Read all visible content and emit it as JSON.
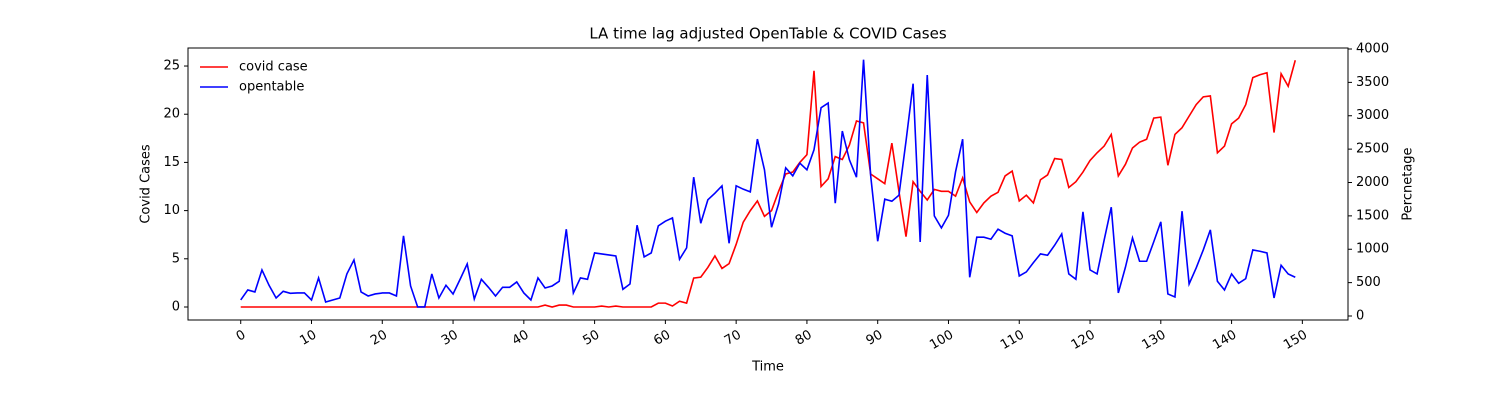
{
  "chart_data": {
    "type": "line",
    "title": "LA time lag adjusted OpenTable & COVID Cases",
    "xlabel": "Time",
    "ylabel": "Covid Cases",
    "y2label": "Percnetage",
    "x": [
      0,
      1,
      2,
      3,
      4,
      5,
      6,
      7,
      8,
      9,
      10,
      11,
      12,
      13,
      14,
      15,
      16,
      17,
      18,
      19,
      20,
      21,
      22,
      23,
      24,
      25,
      26,
      27,
      28,
      29,
      30,
      31,
      32,
      33,
      34,
      35,
      36,
      37,
      38,
      39,
      40,
      41,
      42,
      43,
      44,
      45,
      46,
      47,
      48,
      49,
      50,
      51,
      52,
      53,
      54,
      55,
      56,
      57,
      58,
      59,
      60,
      61,
      62,
      63,
      64,
      65,
      66,
      67,
      68,
      69,
      70,
      71,
      72,
      73,
      74,
      75,
      76,
      77,
      78,
      79,
      80,
      81,
      82,
      83,
      84,
      85,
      86,
      87,
      88,
      89,
      90,
      91,
      92,
      93,
      94,
      95,
      96,
      97,
      98,
      99,
      100,
      101,
      102,
      103,
      104,
      105,
      106,
      107,
      108,
      109,
      110,
      111,
      112,
      113,
      114,
      115,
      116,
      117,
      118,
      119,
      120,
      121,
      122,
      123,
      124,
      125,
      126,
      127,
      128,
      129,
      130,
      131,
      132,
      133,
      134,
      135,
      136,
      137,
      138,
      139,
      140,
      141,
      142,
      143,
      144,
      145,
      146,
      147,
      148,
      149
    ],
    "series": [
      {
        "name": "covid case",
        "color": "#ff0000",
        "axis": "y",
        "values": [
          0,
          0,
          0,
          0,
          0,
          0,
          0,
          0,
          0,
          0,
          0,
          0,
          0,
          0,
          0,
          0,
          0,
          0,
          0,
          0,
          0,
          0,
          0,
          0,
          0,
          0,
          0,
          0,
          0,
          0,
          0,
          0,
          0,
          0,
          0,
          0,
          0,
          0,
          0,
          0,
          0,
          0,
          0,
          0.2,
          0,
          0.2,
          0.2,
          0,
          0,
          0,
          0,
          0.1,
          0,
          0.1,
          0,
          0,
          0,
          0,
          0,
          0.4,
          0.4,
          0.1,
          0.6,
          0.4,
          3,
          3.1,
          4.1,
          5.3,
          4,
          4.5,
          6.5,
          8.8,
          10,
          11,
          9.4,
          10,
          12,
          13.8,
          14,
          15,
          15.8,
          24.5,
          12.5,
          13.3,
          15.6,
          15.3,
          16.8,
          19.3,
          19.1,
          13.8,
          13.3,
          12.8,
          17,
          12,
          7.3,
          13,
          12,
          11.1,
          12.2,
          12,
          12,
          11.5,
          13.4,
          10.9,
          9.8,
          10.8,
          11.5,
          11.9,
          13.6,
          14.1,
          11,
          11.6,
          10.8,
          13.2,
          13.7,
          15.4,
          15.3,
          12.4,
          13,
          14,
          15.2,
          16,
          16.7,
          17.9,
          13.6,
          14.8,
          16.5,
          17.1,
          17.4,
          19.6,
          19.7,
          14.7,
          17.9,
          18.6,
          19.8,
          21,
          21.8,
          21.9,
          16,
          16.7,
          19,
          19.6,
          21,
          23.8,
          24.1,
          24.3,
          18.1,
          24.2,
          22.9,
          25.6
        ]
      },
      {
        "name": "opentable",
        "color": "#0000ff",
        "axis": "y2",
        "values": [
          240,
          390,
          360,
          690,
          460,
          270,
          370,
          340,
          345,
          345,
          240,
          570,
          210,
          240,
          270,
          630,
          840,
          360,
          300,
          330,
          345,
          345,
          300,
          1200,
          450,
          135,
          135,
          630,
          270,
          460,
          330,
          550,
          780,
          255,
          550,
          430,
          300,
          430,
          430,
          510,
          345,
          240,
          570,
          420,
          450,
          520,
          1300,
          345,
          570,
          550,
          945,
          930,
          915,
          900,
          400,
          480,
          1360,
          885,
          945,
          1350,
          1420,
          1470,
          850,
          1020,
          2080,
          1390,
          1740,
          1840,
          1950,
          1090,
          1950,
          1900,
          1860,
          2650,
          2190,
          1330,
          1680,
          2220,
          2100,
          2290,
          2190,
          2490,
          3120,
          3190,
          1690,
          2770,
          2340,
          2080,
          3840,
          2110,
          1120,
          1750,
          1720,
          1810,
          2620,
          3480,
          1110,
          3610,
          1500,
          1320,
          1510,
          2160,
          2650,
          580,
          1180,
          1180,
          1150,
          1300,
          1240,
          1200,
          600,
          660,
          800,
          930,
          910,
          1060,
          1230,
          630,
          550,
          1560,
          690,
          630,
          1140,
          1630,
          345,
          730,
          1170,
          820,
          820,
          1110,
          1410,
          330,
          285,
          1570,
          480,
          720,
          990,
          1290,
          520,
          390,
          630,
          490,
          560,
          990,
          970,
          945,
          270,
          760,
          630,
          580
        ]
      }
    ],
    "xlim": [
      -7.45,
      156.45
    ],
    "xticks": [
      0,
      10,
      20,
      30,
      40,
      50,
      60,
      70,
      80,
      90,
      100,
      110,
      120,
      130,
      140,
      150
    ],
    "ylim": [
      -1.35,
      26.87
    ],
    "yticks": [
      0,
      5,
      10,
      15,
      20,
      25
    ],
    "y2lim": [
      -60,
      4015
    ],
    "y2ticks": [
      0,
      500,
      1000,
      1500,
      2000,
      2500,
      3000,
      3500,
      4000
    ],
    "legend": "upper left"
  }
}
